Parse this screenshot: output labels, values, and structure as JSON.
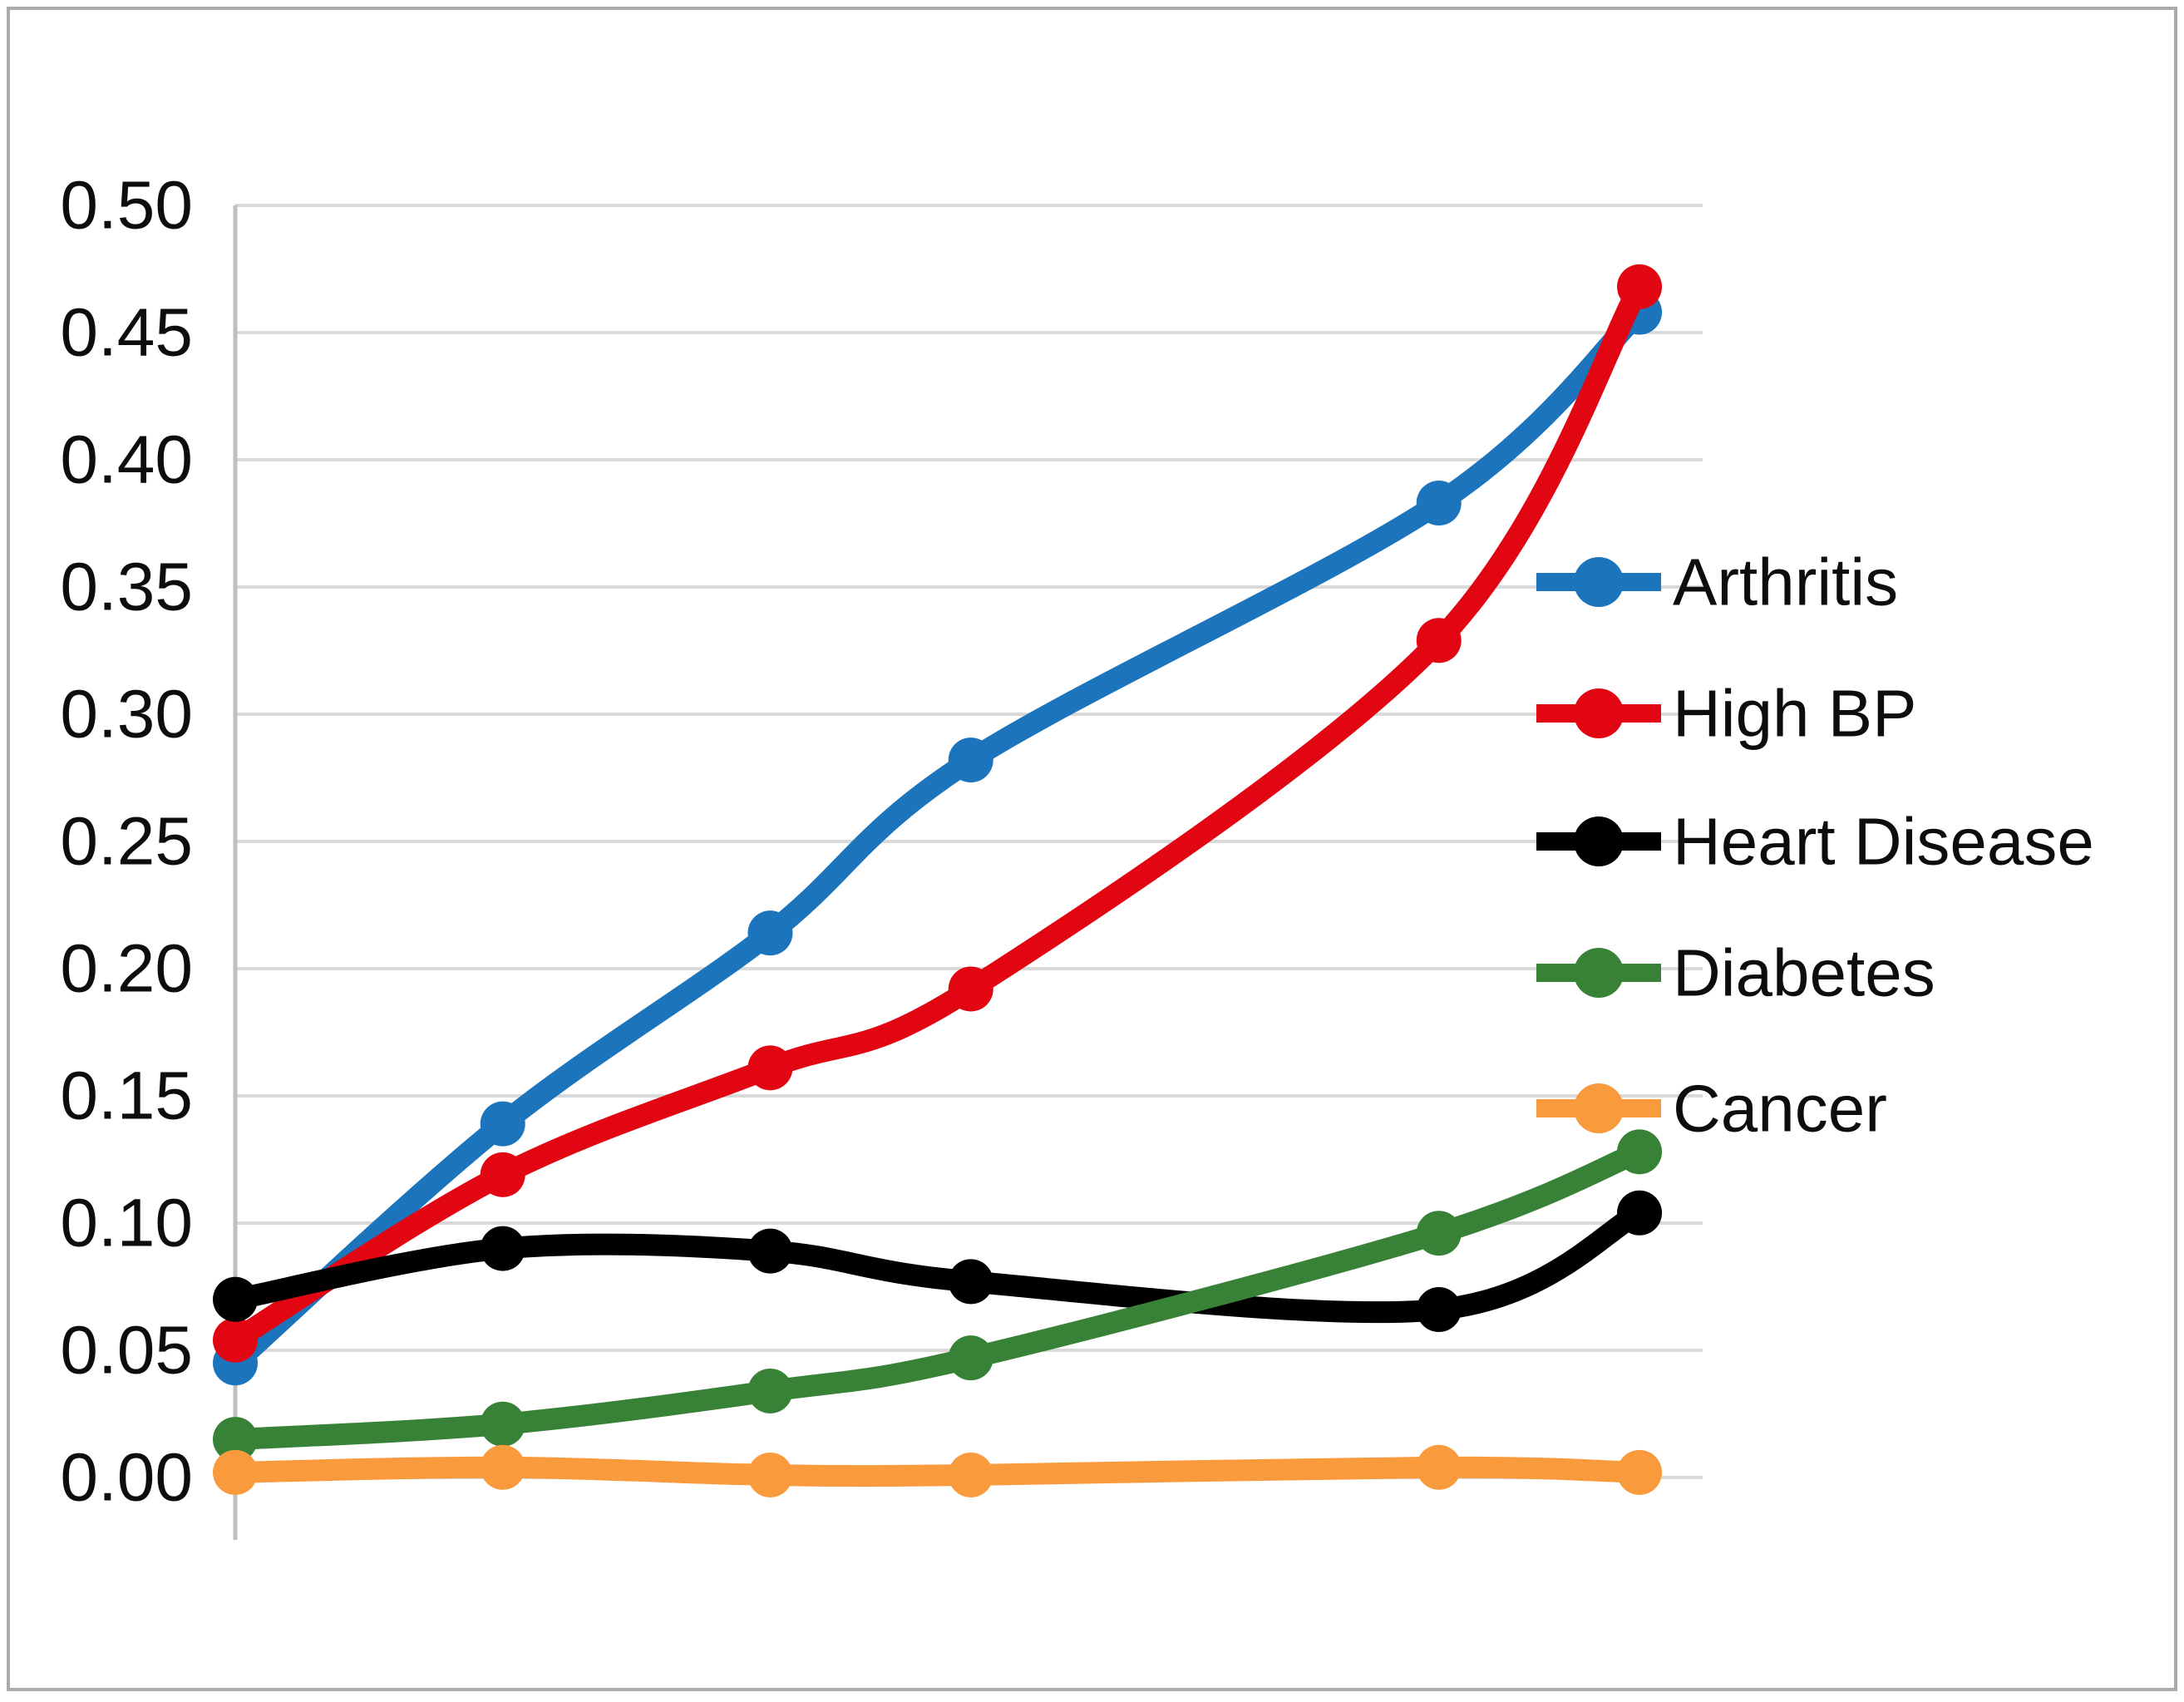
{
  "figure": {
    "background_color": "#ffffff",
    "border_color": "#ababab"
  },
  "chart_data": {
    "type": "line",
    "title": "",
    "xlabel": "",
    "ylabel": "",
    "grid": true,
    "gridline_color": "#d9d9d9",
    "axis_line_color": "#bfbfbf",
    "smoothed_lines": true,
    "markers": "circle",
    "legend_position": "right",
    "x_axis": {
      "tick_labels_visible": false,
      "point_positions": [
        0,
        4,
        8,
        11,
        18,
        21
      ],
      "range": [
        0,
        21.95
      ]
    },
    "y_axis": {
      "min": 0.0,
      "max": 0.5,
      "step": 0.05,
      "tick_labels": [
        "0.00",
        "0.05",
        "0.10",
        "0.15",
        "0.20",
        "0.25",
        "0.30",
        "0.35",
        "0.40",
        "0.45",
        "0.50"
      ]
    },
    "series": [
      {
        "name": "Arthritis",
        "color": "#1c75bc",
        "values": [
          0.045,
          0.139,
          0.214,
          0.282,
          0.383,
          0.458
        ]
      },
      {
        "name": "High BP",
        "color": "#e20613",
        "values": [
          0.054,
          0.119,
          0.161,
          0.192,
          0.329,
          0.468
        ]
      },
      {
        "name": "Heart Disease",
        "color": "#000000",
        "values": [
          0.07,
          0.09,
          0.089,
          0.077,
          0.066,
          0.104
        ]
      },
      {
        "name": "Diabetes",
        "color": "#388237",
        "values": [
          0.015,
          0.021,
          0.034,
          0.047,
          0.096,
          0.128
        ]
      },
      {
        "name": "Cancer",
        "color": "#f99b3d",
        "values": [
          0.002,
          0.004,
          0.001,
          0.001,
          0.004,
          0.002
        ]
      }
    ],
    "legend": {
      "entries": [
        "Arthritis",
        "High BP",
        "Heart Disease",
        "Diabetes",
        "Cancer"
      ]
    }
  }
}
